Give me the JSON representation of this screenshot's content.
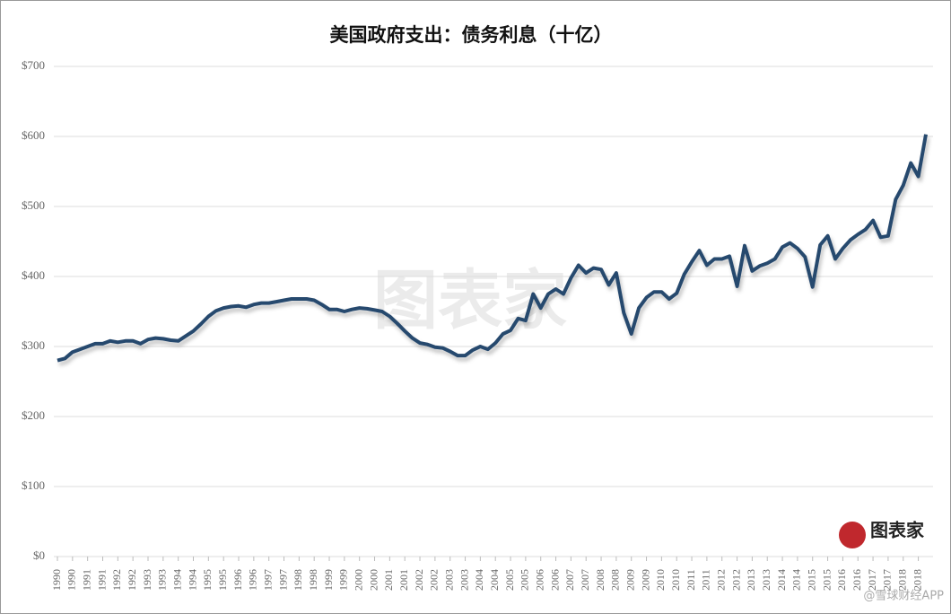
{
  "chart_data": {
    "type": "line",
    "title": "美国政府支出：债务利息（十亿）",
    "annotations": [
      "图表家",
      "@雪球财经APP"
    ],
    "categories": [
      "1990",
      null,
      "1990",
      null,
      "1991",
      null,
      "1991",
      null,
      "1992",
      null,
      "1992",
      null,
      "1993",
      null,
      "1993",
      null,
      "1994",
      null,
      "1994",
      null,
      "1995",
      null,
      "1995",
      null,
      "1996",
      null,
      "1996",
      null,
      "1997",
      null,
      "1997",
      null,
      "1998",
      null,
      "1998",
      null,
      "1999",
      null,
      "1999",
      null,
      "2000",
      null,
      "2000",
      null,
      "2001",
      null,
      "2001",
      null,
      "2002",
      null,
      "2002",
      null,
      "2003",
      null,
      "2003",
      null,
      "2004",
      null,
      "2004",
      null,
      "2005",
      null,
      "2005",
      null,
      "2006",
      null,
      "2006",
      null,
      "2007",
      null,
      "2007",
      null,
      "2008",
      null,
      "2008",
      null,
      "2009",
      null,
      "2009",
      null,
      "2010",
      null,
      "2010",
      null,
      "2011",
      null,
      "2011",
      null,
      "2012",
      null,
      "2012",
      null,
      "2013",
      null,
      "2013",
      null,
      "2014",
      null,
      "2014",
      null,
      "2015",
      null,
      "2015",
      null,
      "2016",
      null,
      "2016",
      null,
      "2017",
      null,
      "2017",
      null,
      "2018",
      null,
      "2018",
      null
    ],
    "series": [
      {
        "color": "#28496e",
        "values": [
          280,
          283,
          292,
          296,
          300,
          304,
          304,
          308,
          306,
          308,
          308,
          304,
          310,
          312,
          311,
          309,
          308,
          315,
          322,
          332,
          343,
          351,
          355,
          357,
          358,
          356,
          360,
          362,
          362,
          364,
          366,
          368,
          368,
          368,
          366,
          360,
          353,
          353,
          350,
          353,
          355,
          354,
          352,
          350,
          343,
          333,
          322,
          312,
          305,
          303,
          299,
          298,
          293,
          287,
          287,
          295,
          300,
          296,
          305,
          318,
          323,
          340,
          337,
          375,
          355,
          375,
          382,
          375,
          398,
          416,
          405,
          412,
          410,
          388,
          405,
          348,
          318,
          355,
          370,
          378,
          378,
          368,
          376,
          403,
          421,
          437,
          416,
          425,
          425,
          429,
          386,
          444,
          408,
          415,
          419,
          425,
          442,
          448,
          440,
          428,
          385,
          445,
          458,
          425,
          440,
          452,
          460,
          467,
          480,
          456,
          458,
          510,
          530,
          562,
          543,
          603
        ]
      }
    ],
    "ylim": [
      0,
      700
    ],
    "yticks": [
      {
        "value": 0,
        "label": "$0"
      },
      {
        "value": 100,
        "label": "$100"
      },
      {
        "value": 200,
        "label": "$200"
      },
      {
        "value": 300,
        "label": "$300"
      },
      {
        "value": 400,
        "label": "$400"
      },
      {
        "value": 500,
        "label": "$500"
      },
      {
        "value": 600,
        "label": "$600"
      },
      {
        "value": 700,
        "label": "$700"
      }
    ],
    "grid": true
  }
}
